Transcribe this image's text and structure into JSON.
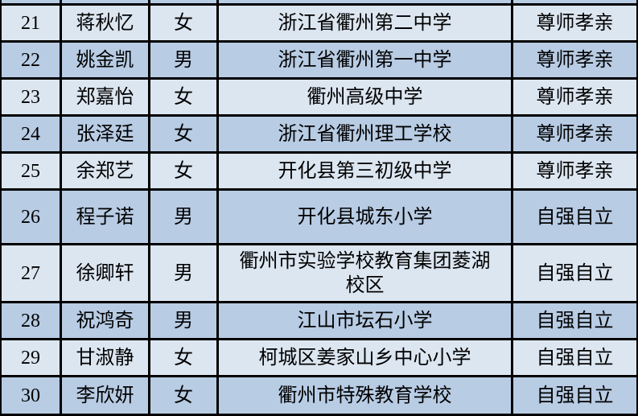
{
  "table": {
    "rows": [
      {
        "no": "21",
        "name": "蒋秋忆",
        "gender": "女",
        "school": "浙江省衢州第二中学",
        "category": "尊师孝亲"
      },
      {
        "no": "22",
        "name": "姚金凯",
        "gender": "男",
        "school": "浙江省衢州第一中学",
        "category": "尊师孝亲"
      },
      {
        "no": "23",
        "name": "郑嘉怡",
        "gender": "女",
        "school": "衢州高级中学",
        "category": "尊师孝亲"
      },
      {
        "no": "24",
        "name": "张泽廷",
        "gender": "女",
        "school": "浙江省衢州理工学校",
        "category": "尊师孝亲"
      },
      {
        "no": "25",
        "name": "余郑艺",
        "gender": "女",
        "school": "开化县第三初级中学",
        "category": "尊师孝亲"
      },
      {
        "no": "26",
        "name": "程子诺",
        "gender": "男",
        "school": "开化县城东小学",
        "category": "自强自立"
      },
      {
        "no": "27",
        "name": "徐卿轩",
        "gender": "男",
        "school": "衢州市实验学校教育集团菱湖校区",
        "category": "自强自立"
      },
      {
        "no": "28",
        "name": "祝鸿奇",
        "gender": "男",
        "school": "江山市坛石小学",
        "category": "自强自立"
      },
      {
        "no": "29",
        "name": "甘淑静",
        "gender": "女",
        "school": "柯城区姜家山乡中心小学",
        "category": "自强自立"
      },
      {
        "no": "30",
        "name": "李欣妍",
        "gender": "女",
        "school": "衢州市特殊教育学校",
        "category": "自强自立"
      }
    ],
    "colors": {
      "row_light": "#dce6f1",
      "row_dark": "#b8cce4",
      "border": "#000000"
    }
  }
}
